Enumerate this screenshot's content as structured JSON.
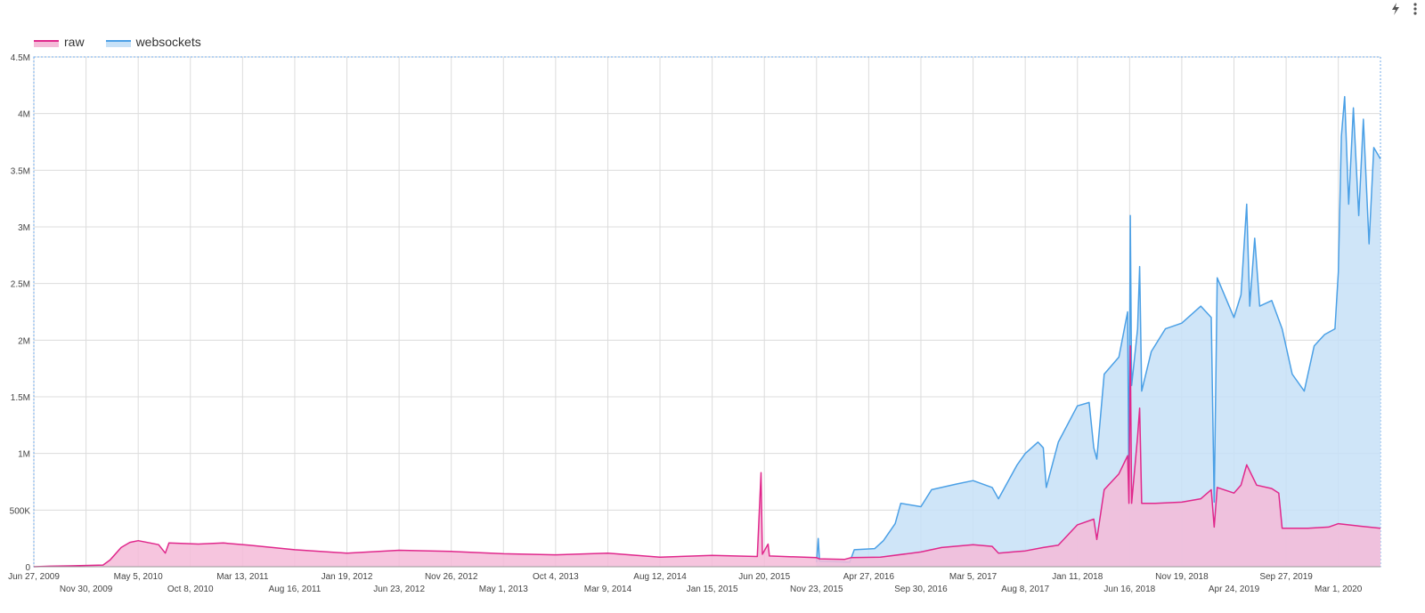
{
  "toolbar": {
    "quick_icon": "lightning-icon",
    "menu_icon": "more-vert-icon"
  },
  "chart_data": {
    "type": "area",
    "title": "",
    "xlabel": "",
    "ylabel": "",
    "x_range": [
      "2009-06-27",
      "2020-07-05"
    ],
    "ylim": [
      0,
      4500000
    ],
    "y_ticks": [
      0,
      500000,
      1000000,
      1500000,
      2000000,
      2500000,
      3000000,
      3500000,
      4000000,
      4500000
    ],
    "y_tick_labels": [
      "0",
      "500K",
      "1M",
      "1.5M",
      "2M",
      "2.5M",
      "3M",
      "3.5M",
      "4M",
      "4.5M"
    ],
    "x_ticks": [
      {
        "date": "2009-06-27",
        "label": "Jun 27, 2009",
        "row": 0
      },
      {
        "date": "2009-11-30",
        "label": "Nov 30, 2009",
        "row": 1
      },
      {
        "date": "2010-05-05",
        "label": "May 5, 2010",
        "row": 0
      },
      {
        "date": "2010-10-08",
        "label": "Oct 8, 2010",
        "row": 1
      },
      {
        "date": "2011-03-13",
        "label": "Mar 13, 2011",
        "row": 0
      },
      {
        "date": "2011-08-16",
        "label": "Aug 16, 2011",
        "row": 1
      },
      {
        "date": "2012-01-19",
        "label": "Jan 19, 2012",
        "row": 0
      },
      {
        "date": "2012-06-23",
        "label": "Jun 23, 2012",
        "row": 1
      },
      {
        "date": "2012-11-26",
        "label": "Nov 26, 2012",
        "row": 0
      },
      {
        "date": "2013-05-01",
        "label": "May 1, 2013",
        "row": 1
      },
      {
        "date": "2013-10-04",
        "label": "Oct 4, 2013",
        "row": 0
      },
      {
        "date": "2014-03-09",
        "label": "Mar 9, 2014",
        "row": 1
      },
      {
        "date": "2014-08-12",
        "label": "Aug 12, 2014",
        "row": 0
      },
      {
        "date": "2015-01-15",
        "label": "Jan 15, 2015",
        "row": 1
      },
      {
        "date": "2015-06-20",
        "label": "Jun 20, 2015",
        "row": 0
      },
      {
        "date": "2015-11-23",
        "label": "Nov 23, 2015",
        "row": 1
      },
      {
        "date": "2016-04-27",
        "label": "Apr 27, 2016",
        "row": 0
      },
      {
        "date": "2016-09-30",
        "label": "Sep 30, 2016",
        "row": 1
      },
      {
        "date": "2017-03-05",
        "label": "Mar 5, 2017",
        "row": 0
      },
      {
        "date": "2017-08-08",
        "label": "Aug 8, 2017",
        "row": 1
      },
      {
        "date": "2018-01-11",
        "label": "Jan 11, 2018",
        "row": 0
      },
      {
        "date": "2018-06-16",
        "label": "Jun 16, 2018",
        "row": 1
      },
      {
        "date": "2018-11-19",
        "label": "Nov 19, 2018",
        "row": 0
      },
      {
        "date": "2019-04-24",
        "label": "Apr 24, 2019",
        "row": 1
      },
      {
        "date": "2019-09-27",
        "label": "Sep 27, 2019",
        "row": 0
      },
      {
        "date": "2020-03-01",
        "label": "Mar 1, 2020",
        "row": 1
      }
    ],
    "grid": true,
    "legend_position": "top-left",
    "series": [
      {
        "name": "raw",
        "color": "#e0288c",
        "fill": "#f4bbd8",
        "points": [
          [
            "2009-06-27",
            0
          ],
          [
            "2009-08-15",
            5000
          ],
          [
            "2009-10-15",
            8000
          ],
          [
            "2010-01-20",
            15000
          ],
          [
            "2010-02-10",
            60000
          ],
          [
            "2010-03-15",
            170000
          ],
          [
            "2010-04-10",
            215000
          ],
          [
            "2010-05-05",
            230000
          ],
          [
            "2010-06-10",
            210000
          ],
          [
            "2010-07-05",
            195000
          ],
          [
            "2010-07-25",
            120000
          ],
          [
            "2010-08-05",
            210000
          ],
          [
            "2010-11-01",
            200000
          ],
          [
            "2011-01-15",
            210000
          ],
          [
            "2011-04-01",
            190000
          ],
          [
            "2011-08-16",
            150000
          ],
          [
            "2012-01-19",
            120000
          ],
          [
            "2012-06-23",
            145000
          ],
          [
            "2012-11-26",
            135000
          ],
          [
            "2013-05-01",
            115000
          ],
          [
            "2013-10-04",
            105000
          ],
          [
            "2014-03-09",
            120000
          ],
          [
            "2014-08-12",
            85000
          ],
          [
            "2015-01-15",
            100000
          ],
          [
            "2015-05-30",
            90000
          ],
          [
            "2015-06-10",
            830000
          ],
          [
            "2015-06-14",
            110000
          ],
          [
            "2015-07-01",
            200000
          ],
          [
            "2015-07-05",
            95000
          ],
          [
            "2015-11-23",
            80000
          ],
          [
            "2015-12-01",
            70000
          ],
          [
            "2016-02-15",
            65000
          ],
          [
            "2016-03-05",
            80000
          ],
          [
            "2016-06-01",
            85000
          ],
          [
            "2016-09-30",
            130000
          ],
          [
            "2016-12-01",
            170000
          ],
          [
            "2017-03-05",
            195000
          ],
          [
            "2017-05-01",
            180000
          ],
          [
            "2017-05-20",
            120000
          ],
          [
            "2017-08-08",
            140000
          ],
          [
            "2017-10-01",
            170000
          ],
          [
            "2017-11-15",
            190000
          ],
          [
            "2018-01-11",
            370000
          ],
          [
            "2018-03-01",
            420000
          ],
          [
            "2018-03-10",
            240000
          ],
          [
            "2018-04-01",
            680000
          ],
          [
            "2018-05-15",
            820000
          ],
          [
            "2018-06-10",
            980000
          ],
          [
            "2018-06-14",
            560000
          ],
          [
            "2018-06-18",
            1950000
          ],
          [
            "2018-06-22",
            560000
          ],
          [
            "2018-07-10",
            1150000
          ],
          [
            "2018-07-16",
            1400000
          ],
          [
            "2018-07-22",
            560000
          ],
          [
            "2018-09-01",
            560000
          ],
          [
            "2018-11-19",
            570000
          ],
          [
            "2019-01-15",
            600000
          ],
          [
            "2019-02-15",
            680000
          ],
          [
            "2019-02-24",
            350000
          ],
          [
            "2019-03-05",
            700000
          ],
          [
            "2019-04-24",
            650000
          ],
          [
            "2019-05-15",
            720000
          ],
          [
            "2019-06-01",
            900000
          ],
          [
            "2019-07-01",
            720000
          ],
          [
            "2019-08-15",
            690000
          ],
          [
            "2019-09-05",
            650000
          ],
          [
            "2019-09-15",
            340000
          ],
          [
            "2019-12-01",
            340000
          ],
          [
            "2020-02-01",
            350000
          ],
          [
            "2020-03-01",
            380000
          ],
          [
            "2020-05-01",
            360000
          ],
          [
            "2020-07-05",
            340000
          ]
        ]
      },
      {
        "name": "websockets",
        "color": "#4ba0e6",
        "fill": "#c7e1f7",
        "points": [
          [
            "2015-11-23",
            40000
          ],
          [
            "2015-11-28",
            250000
          ],
          [
            "2015-12-02",
            50000
          ],
          [
            "2016-03-01",
            40000
          ],
          [
            "2016-03-15",
            150000
          ],
          [
            "2016-05-15",
            160000
          ],
          [
            "2016-06-10",
            230000
          ],
          [
            "2016-07-15",
            380000
          ],
          [
            "2016-08-01",
            560000
          ],
          [
            "2016-09-30",
            530000
          ],
          [
            "2016-11-01",
            680000
          ],
          [
            "2017-01-15",
            730000
          ],
          [
            "2017-03-05",
            760000
          ],
          [
            "2017-05-01",
            700000
          ],
          [
            "2017-05-20",
            600000
          ],
          [
            "2017-07-15",
            900000
          ],
          [
            "2017-08-08",
            1000000
          ],
          [
            "2017-09-15",
            1100000
          ],
          [
            "2017-10-01",
            1050000
          ],
          [
            "2017-10-10",
            700000
          ],
          [
            "2017-11-15",
            1100000
          ],
          [
            "2018-01-11",
            1420000
          ],
          [
            "2018-02-15",
            1450000
          ],
          [
            "2018-03-01",
            1050000
          ],
          [
            "2018-03-10",
            950000
          ],
          [
            "2018-04-01",
            1700000
          ],
          [
            "2018-05-15",
            1850000
          ],
          [
            "2018-06-10",
            2250000
          ],
          [
            "2018-06-14",
            570000
          ],
          [
            "2018-06-18",
            3100000
          ],
          [
            "2018-06-22",
            1600000
          ],
          [
            "2018-07-10",
            2100000
          ],
          [
            "2018-07-16",
            2650000
          ],
          [
            "2018-07-22",
            1550000
          ],
          [
            "2018-08-20",
            1900000
          ],
          [
            "2018-10-01",
            2100000
          ],
          [
            "2018-11-19",
            2150000
          ],
          [
            "2019-01-15",
            2300000
          ],
          [
            "2019-02-15",
            2200000
          ],
          [
            "2019-02-24",
            570000
          ],
          [
            "2019-03-05",
            2550000
          ],
          [
            "2019-04-24",
            2200000
          ],
          [
            "2019-05-15",
            2400000
          ],
          [
            "2019-06-01",
            3200000
          ],
          [
            "2019-06-10",
            2300000
          ],
          [
            "2019-06-25",
            2900000
          ],
          [
            "2019-07-10",
            2300000
          ],
          [
            "2019-08-15",
            2350000
          ],
          [
            "2019-09-15",
            2100000
          ],
          [
            "2019-10-15",
            1700000
          ],
          [
            "2019-11-20",
            1550000
          ],
          [
            "2019-12-20",
            1950000
          ],
          [
            "2020-01-20",
            2050000
          ],
          [
            "2020-02-20",
            2100000
          ],
          [
            "2020-03-01",
            2600000
          ],
          [
            "2020-03-10",
            3800000
          ],
          [
            "2020-03-20",
            4150000
          ],
          [
            "2020-04-01",
            3200000
          ],
          [
            "2020-04-15",
            4050000
          ],
          [
            "2020-05-01",
            3100000
          ],
          [
            "2020-05-15",
            3950000
          ],
          [
            "2020-06-01",
            2850000
          ],
          [
            "2020-06-15",
            3700000
          ],
          [
            "2020-07-05",
            3600000
          ]
        ]
      }
    ]
  }
}
